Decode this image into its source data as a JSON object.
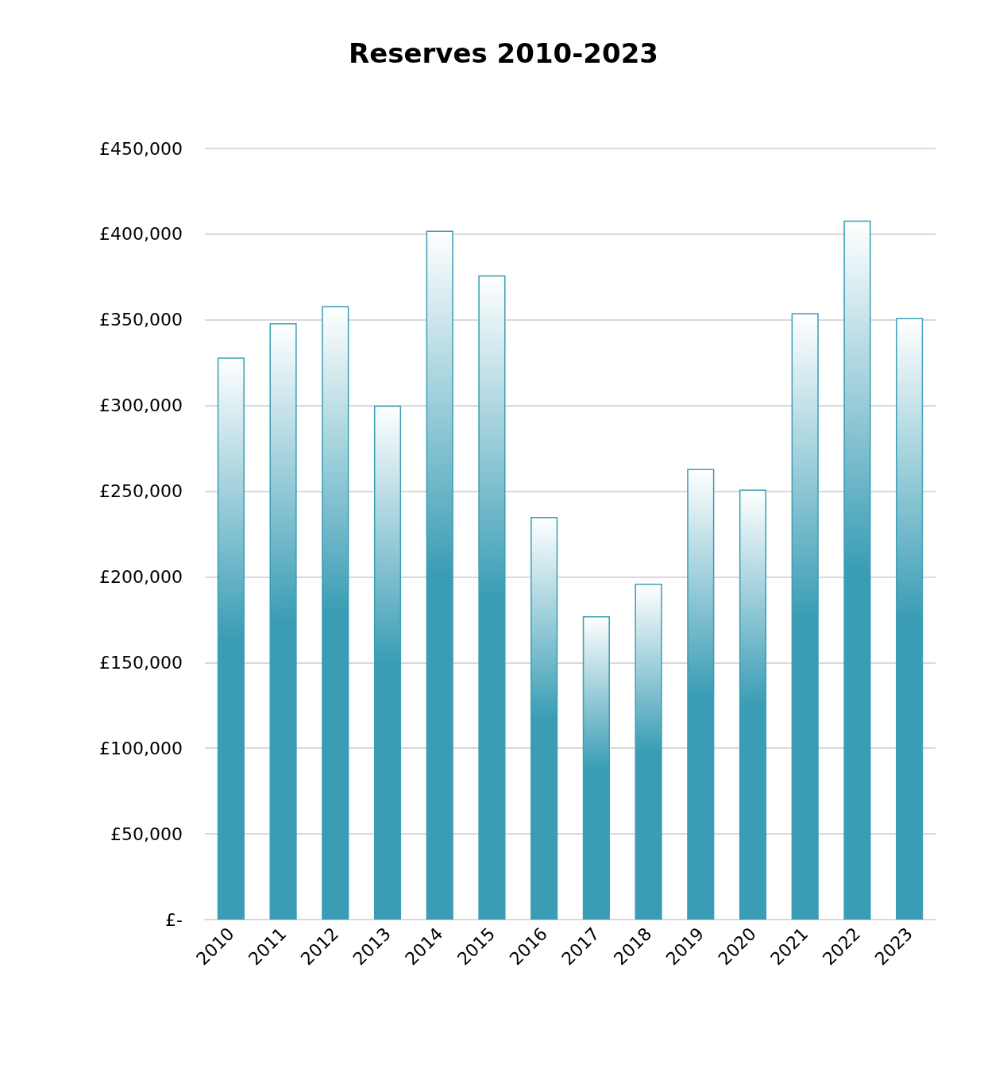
{
  "chart_data": {
    "type": "bar",
    "title": "Reserves 2010-2023",
    "categories": [
      "2010",
      "2011",
      "2012",
      "2013",
      "2014",
      "2015",
      "2016",
      "2017",
      "2018",
      "2019",
      "2020",
      "2021",
      "2022",
      "2023"
    ],
    "values": [
      328000,
      348000,
      358000,
      300000,
      402000,
      376000,
      235000,
      177000,
      196000,
      263000,
      251000,
      354000,
      408000,
      351000
    ],
    "color": "#3a9db5",
    "ylim": [
      0,
      450000
    ],
    "yticks": [
      {
        "value": 0,
        "label": "£-"
      },
      {
        "value": 50000,
        "label": "£50,000"
      },
      {
        "value": 100000,
        "label": "£100,000"
      },
      {
        "value": 150000,
        "label": "£150,000"
      },
      {
        "value": 200000,
        "label": "£200,000"
      },
      {
        "value": 250000,
        "label": "£250,000"
      },
      {
        "value": 300000,
        "label": "£300,000"
      },
      {
        "value": 350000,
        "label": "£350,000"
      },
      {
        "value": 400000,
        "label": "£400,000"
      },
      {
        "value": 450000,
        "label": "£450,000"
      }
    ],
    "grid": "y"
  }
}
